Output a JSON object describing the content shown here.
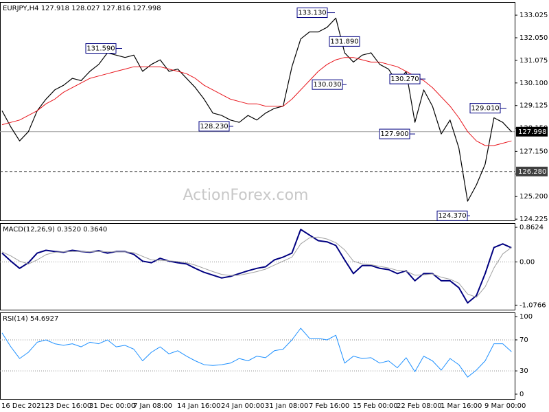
{
  "chart_data": [
    {
      "type": "line",
      "title": "EURJPY,H4 127.918 128.027 127.816 127.998",
      "watermark": "ActionForex.com",
      "ylim": [
        124.17,
        133.59
      ],
      "yticks": [
        133.025,
        {
          "value": 132.05,
          "label": "132.050"
        },
        131.075,
        {
          "value": 130.1,
          "label": "130.100"
        },
        129.125,
        {
          "value": 128.15,
          "label": "128.150"
        },
        {
          "value": 127.15,
          "label": "127.150"
        },
        126.175,
        {
          "value": 125.2,
          "label": "125.200"
        },
        124.225
      ],
      "series": [
        {
          "color": "#000000",
          "values": [
            128.9,
            128.2,
            127.6,
            128.0,
            128.9,
            129.4,
            129.8,
            130.0,
            130.3,
            130.2,
            130.6,
            130.9,
            131.4,
            131.3,
            131.2,
            131.3,
            130.6,
            130.9,
            131.1,
            130.6,
            130.7,
            130.3,
            129.9,
            129.4,
            128.8,
            128.7,
            128.5,
            128.4,
            128.7,
            128.5,
            128.8,
            129.0,
            129.1,
            130.8,
            132.0,
            132.3,
            132.3,
            132.5,
            132.9,
            131.4,
            131.0,
            131.3,
            131.4,
            130.9,
            130.7,
            130.1,
            130.6,
            128.4,
            129.8,
            129.1,
            127.9,
            128.5,
            127.3,
            125.0,
            125.7,
            126.6,
            128.6,
            128.4,
            127.998
          ]
        },
        {
          "color": "#e8141b",
          "values": [
            128.3,
            128.4,
            128.5,
            128.7,
            128.9,
            129.2,
            129.4,
            129.7,
            129.9,
            130.1,
            130.3,
            130.4,
            130.5,
            130.6,
            130.7,
            130.8,
            130.8,
            130.8,
            130.8,
            130.7,
            130.6,
            130.5,
            130.3,
            130.0,
            129.8,
            129.6,
            129.4,
            129.3,
            129.2,
            129.2,
            129.1,
            129.1,
            129.1,
            129.4,
            129.8,
            130.2,
            130.6,
            130.9,
            131.1,
            131.2,
            131.2,
            131.1,
            131.0,
            131.0,
            130.9,
            130.8,
            130.6,
            130.4,
            130.2,
            129.9,
            129.5,
            129.1,
            128.6,
            128.0,
            127.6,
            127.4,
            127.4,
            127.5,
            127.6
          ]
        }
      ],
      "price_lines": [
        {
          "value": 127.998,
          "label": "127.998"
        },
        {
          "value": 126.28,
          "label": "126.280"
        }
      ],
      "annotations": [
        {
          "value": 133.13,
          "label": "133.130"
        },
        {
          "value": 131.89,
          "label": "131.890"
        },
        {
          "value": 131.59,
          "label": "131.590"
        },
        {
          "value": 130.03,
          "label": "130.030"
        },
        {
          "value": 130.27,
          "label": "130.270"
        },
        {
          "value": 129.01,
          "label": "129.010"
        },
        {
          "value": 128.23,
          "label": "128.230"
        },
        {
          "value": 127.9,
          "label": "127.900"
        },
        {
          "value": 124.37,
          "label": "124.370"
        }
      ]
    },
    {
      "type": "line",
      "title": "MACD(12,26,9) 0.3520 0.3640",
      "ylim": [
        -1.19,
        0.966
      ],
      "yticks": [
        0.8624,
        {
          "value": 0,
          "label": "0.00"
        },
        -1.0766
      ],
      "levels": [
        0
      ],
      "series": [
        {
          "color": "#000080",
          "values": [
            0.22,
            0.02,
            -0.16,
            -0.02,
            0.22,
            0.29,
            0.26,
            0.24,
            0.29,
            0.26,
            0.24,
            0.28,
            0.22,
            0.26,
            0.26,
            0.19,
            0.02,
            -0.02,
            0.09,
            0.02,
            -0.02,
            -0.05,
            -0.16,
            -0.26,
            -0.33,
            -0.4,
            -0.36,
            -0.29,
            -0.22,
            -0.16,
            -0.12,
            0.05,
            0.12,
            0.22,
            0.81,
            0.67,
            0.53,
            0.5,
            0.41,
            0.05,
            -0.29,
            -0.09,
            -0.09,
            -0.16,
            -0.19,
            -0.29,
            -0.22,
            -0.47,
            -0.29,
            -0.29,
            -0.47,
            -0.47,
            -0.64,
            -1.02,
            -0.84,
            -0.29,
            0.36,
            0.45,
            0.352
          ]
        },
        {
          "color": "#a0a0a0",
          "values": [
            0.25,
            0.15,
            0.02,
            -0.05,
            0.05,
            0.18,
            0.24,
            0.25,
            0.26,
            0.26,
            0.25,
            0.26,
            0.25,
            0.25,
            0.25,
            0.23,
            0.14,
            0.05,
            0.04,
            0.03,
            0.01,
            -0.02,
            -0.08,
            -0.16,
            -0.24,
            -0.31,
            -0.34,
            -0.33,
            -0.29,
            -0.24,
            -0.18,
            -0.08,
            0.02,
            0.12,
            0.45,
            0.6,
            0.62,
            0.57,
            0.48,
            0.3,
            0.02,
            -0.05,
            -0.07,
            -0.11,
            -0.15,
            -0.21,
            -0.23,
            -0.33,
            -0.32,
            -0.3,
            -0.38,
            -0.43,
            -0.53,
            -0.8,
            -0.88,
            -0.62,
            -0.15,
            0.2,
            0.364
          ]
        }
      ]
    },
    {
      "type": "line",
      "title": "RSI(14) 54.6927",
      "ylim": [
        -6.2,
        105.4
      ],
      "yticks": [
        100,
        70,
        30,
        0
      ],
      "levels": [
        70,
        30
      ],
      "series": [
        {
          "color": "#1e90ff",
          "values": [
            79,
            61,
            46,
            54,
            67,
            70,
            65,
            63,
            65,
            61,
            67,
            65,
            70,
            61,
            63,
            58,
            43,
            54,
            61,
            52,
            56,
            49,
            43,
            38,
            37,
            38,
            40,
            46,
            43,
            49,
            47,
            56,
            58,
            70,
            85,
            72,
            72,
            70,
            76,
            40,
            49,
            46,
            47,
            40,
            43,
            34,
            47,
            29,
            49,
            43,
            31,
            46,
            38,
            22,
            31,
            43,
            65,
            65,
            54.69
          ]
        }
      ],
      "categories": [
        "16 Dec 2021",
        null,
        null,
        null,
        null,
        "23 Dec 16:00",
        null,
        null,
        null,
        null,
        "31 Dec 00:00",
        null,
        null,
        null,
        null,
        "7 Jan 08:00",
        null,
        null,
        null,
        null,
        "14 Jan 16:00",
        null,
        null,
        null,
        null,
        "24 Jan 00:00",
        null,
        null,
        null,
        null,
        "31 Jan 08:00",
        null,
        null,
        null,
        null,
        "7 Feb 16:00",
        null,
        null,
        null,
        null,
        "15 Feb 00:00",
        null,
        null,
        null,
        null,
        "22 Feb 08:00",
        null,
        null,
        null,
        null,
        "1 Mar 16:00",
        null,
        null,
        null,
        null,
        "9 Mar 00:00",
        null,
        null,
        null
      ]
    }
  ]
}
